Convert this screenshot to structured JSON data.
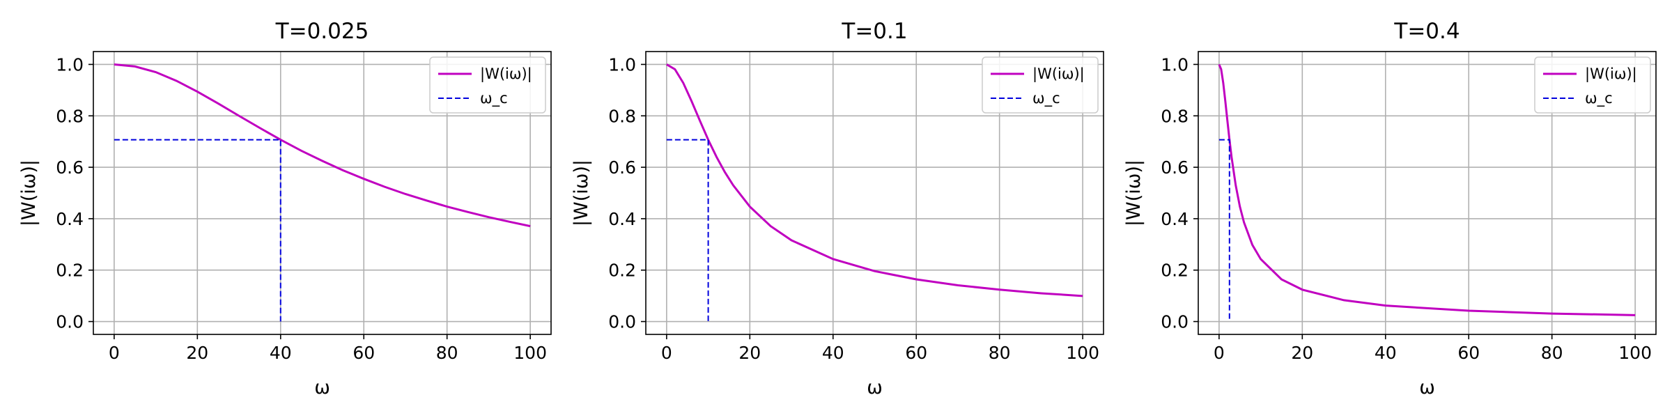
{
  "chart_data": [
    {
      "type": "line",
      "title": "T=0.025",
      "T": 0.025,
      "xlabel": "ω",
      "ylabel": "|W(iω)|",
      "xlim": [
        -5,
        105
      ],
      "ylim": [
        -0.05,
        1.05
      ],
      "xticks": [
        0,
        20,
        40,
        60,
        80,
        100
      ],
      "yticks": [
        0.0,
        0.2,
        0.4,
        0.6,
        0.8,
        1.0
      ],
      "grid": true,
      "legend_position": "top-right",
      "series": [
        {
          "name": "|W(iω)|",
          "color": "#c000c0",
          "style": "solid",
          "x": [
            0,
            5,
            10,
            15,
            20,
            25,
            30,
            35,
            40,
            45,
            50,
            55,
            60,
            65,
            70,
            75,
            80,
            85,
            90,
            95,
            100
          ],
          "y": [
            1.0,
            0.992,
            0.97,
            0.936,
            0.894,
            0.848,
            0.8,
            0.753,
            0.707,
            0.664,
            0.625,
            0.588,
            0.555,
            0.524,
            0.496,
            0.471,
            0.447,
            0.426,
            0.406,
            0.388,
            0.371
          ]
        },
        {
          "name": "ω_c",
          "color": "#0000dd",
          "style": "dashed",
          "x": [
            0,
            40,
            40
          ],
          "y": [
            0.707,
            0.707,
            0.0
          ]
        }
      ]
    },
    {
      "type": "line",
      "title": "T=0.1",
      "T": 0.1,
      "xlabel": "ω",
      "ylabel": "|W(iω)|",
      "xlim": [
        -5,
        105
      ],
      "ylim": [
        -0.05,
        1.05
      ],
      "xticks": [
        0,
        20,
        40,
        60,
        80,
        100
      ],
      "yticks": [
        0.0,
        0.2,
        0.4,
        0.6,
        0.8,
        1.0
      ],
      "grid": true,
      "legend_position": "top-right",
      "series": [
        {
          "name": "|W(iω)|",
          "color": "#c000c0",
          "style": "solid",
          "x": [
            0,
            2,
            4,
            6,
            8,
            10,
            12,
            14,
            16,
            20,
            25,
            30,
            40,
            50,
            60,
            70,
            80,
            90,
            100
          ],
          "y": [
            1.0,
            0.981,
            0.928,
            0.857,
            0.781,
            0.707,
            0.64,
            0.581,
            0.53,
            0.447,
            0.371,
            0.316,
            0.243,
            0.196,
            0.164,
            0.141,
            0.124,
            0.11,
            0.0995
          ]
        },
        {
          "name": "ω_c",
          "color": "#0000dd",
          "style": "dashed",
          "x": [
            0,
            10,
            10
          ],
          "y": [
            0.707,
            0.707,
            0.0
          ]
        }
      ]
    },
    {
      "type": "line",
      "title": "T=0.4",
      "T": 0.4,
      "xlabel": "ω",
      "ylabel": "|W(iω)|",
      "xlim": [
        -5,
        105
      ],
      "ylim": [
        -0.05,
        1.05
      ],
      "xticks": [
        0,
        20,
        40,
        60,
        80,
        100
      ],
      "yticks": [
        0.0,
        0.2,
        0.4,
        0.6,
        0.8,
        1.0
      ],
      "grid": true,
      "legend_position": "top-right",
      "series": [
        {
          "name": "|W(iω)|",
          "color": "#c000c0",
          "style": "solid",
          "x": [
            0,
            0.5,
            1,
            1.5,
            2,
            2.5,
            3,
            4,
            5,
            6,
            8,
            10,
            15,
            20,
            30,
            40,
            60,
            80,
            100
          ],
          "y": [
            1.0,
            0.981,
            0.928,
            0.857,
            0.781,
            0.707,
            0.64,
            0.53,
            0.447,
            0.385,
            0.298,
            0.243,
            0.164,
            0.124,
            0.083,
            0.062,
            0.042,
            0.031,
            0.025
          ]
        },
        {
          "name": "ω_c",
          "color": "#0000dd",
          "style": "dashed",
          "x": [
            0,
            2.5,
            2.5
          ],
          "y": [
            0.707,
            0.707,
            0.0
          ]
        }
      ]
    }
  ]
}
